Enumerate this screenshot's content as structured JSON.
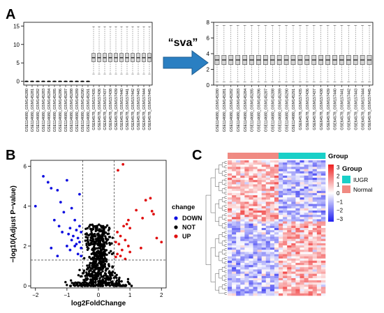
{
  "panels": {
    "a": "A",
    "b": "B",
    "c": "C"
  },
  "arrow_label": "“sva”",
  "chart_data": [
    {
      "type": "box",
      "panel": "A-left",
      "ylim": [
        -1,
        16
      ],
      "yticks": [
        "0",
        "5",
        "10",
        "15"
      ],
      "categories": [
        "GSE114680_GSM145280",
        "GSE114680_GSM145281",
        "GSE114680_GSM145282",
        "GSE114680_GSM145283",
        "GSE114680_GSM145284",
        "GSE114680_GSM145285",
        "GSE114680_GSM145286",
        "GSE114680_GSM145287",
        "GSE114680_GSM145288",
        "GSE114680_GSM145289",
        "GSE114680_GSM145290",
        "GSE114680_GSM145291",
        "GSE64578_GSM157435",
        "GSE64578_GSM157436",
        "GSE64578_GSM157437",
        "GSE64578_GSM157438",
        "GSE64578_GSM157439",
        "GSE64578_GSM157440",
        "GSE64578_GSM157441",
        "GSE64578_GSM157442",
        "GSE64578_GSM157443",
        "GSE64578_GSM157444",
        "GSE64578_GSM157445"
      ],
      "group1": {
        "q1": -0.05,
        "median": 0.0,
        "q3": 0.05,
        "whisker_low": -0.15,
        "whisker_high": 0.15,
        "count": 12
      },
      "group2": {
        "q1": 5.3,
        "median": 6.4,
        "q3": 7.6,
        "whisker_low": 2.0,
        "whisker_high": 14.8,
        "count": 11
      }
    },
    {
      "type": "box",
      "panel": "A-right",
      "ylim": [
        0,
        8
      ],
      "yticks": [
        "0",
        "2",
        "4",
        "6",
        "8"
      ],
      "categories": [
        "GSE114680_GSM145280",
        "GSE114680_GSM145281",
        "GSE114680_GSM145282",
        "GSE114680_GSM145283",
        "GSE114680_GSM145284",
        "GSE114680_GSM145285",
        "GSE114680_GSM145286",
        "GSE114680_GSM145287",
        "GSE114680_GSM145288",
        "GSE114680_GSM145289",
        "GSE114680_GSM145290",
        "GSE114680_GSM145291",
        "GSE64578_GSM157435",
        "GSE64578_GSM157436",
        "GSE64578_GSM157437",
        "GSE64578_GSM157438",
        "GSE64578_GSM157439",
        "GSE64578_GSM157440",
        "GSE64578_GSM157441",
        "GSE64578_GSM157442",
        "GSE64578_GSM157443",
        "GSE64578_GSM157444",
        "GSE64578_GSM157445"
      ],
      "box": {
        "q1": 2.6,
        "median": 3.2,
        "q3": 3.8,
        "whisker_low": 0.4,
        "whisker_high": 7.6
      }
    },
    {
      "type": "scatter",
      "panel": "B",
      "xlabel": "log2FoldChange",
      "ylabel": "−log10(Adjust P−value)",
      "xlim": [
        -2.15,
        2.15
      ],
      "ylim": [
        -0.1,
        6.3
      ],
      "xticks": [
        "−2",
        "−1",
        "0",
        "1",
        "2"
      ],
      "yticks": [
        "0",
        "2",
        "4",
        "6"
      ],
      "vlines": [
        -0.5,
        0.5
      ],
      "hline": 1.3,
      "legend_title": "change",
      "legend": [
        {
          "name": "DOWN",
          "color": "#1010e0"
        },
        {
          "name": "NOT",
          "color": "#000000"
        },
        {
          "name": "UP",
          "color": "#e01010"
        }
      ],
      "down_points": [
        [
          -2.0,
          4.0
        ],
        [
          -1.75,
          5.5
        ],
        [
          -1.6,
          5.2
        ],
        [
          -1.5,
          4.9
        ],
        [
          -1.3,
          4.8
        ],
        [
          -1.2,
          4.2
        ],
        [
          -1.0,
          5.3
        ],
        [
          -1.1,
          3.7
        ],
        [
          -1.4,
          3.3
        ],
        [
          -1.25,
          3.0
        ],
        [
          -0.85,
          3.9
        ],
        [
          -0.75,
          3.3
        ],
        [
          -0.9,
          2.9
        ],
        [
          -1.15,
          2.7
        ],
        [
          -0.95,
          2.6
        ],
        [
          -0.7,
          2.8
        ],
        [
          -0.6,
          3.0
        ],
        [
          -0.8,
          2.5
        ],
        [
          -0.65,
          2.4
        ],
        [
          -0.55,
          2.7
        ],
        [
          -0.7,
          2.1
        ],
        [
          -0.6,
          2.2
        ],
        [
          -0.85,
          2.3
        ],
        [
          -0.75,
          2.0
        ],
        [
          -0.55,
          1.9
        ],
        [
          -1.0,
          2.0
        ],
        [
          -0.9,
          1.8
        ],
        [
          -0.65,
          1.6
        ],
        [
          -0.55,
          1.5
        ],
        [
          -1.5,
          1.9
        ],
        [
          -1.3,
          1.5
        ],
        [
          -0.6,
          4.6
        ]
      ],
      "up_points": [
        [
          0.78,
          6.1
        ],
        [
          0.62,
          5.8
        ],
        [
          1.65,
          4.4
        ],
        [
          1.5,
          4.3
        ],
        [
          1.7,
          3.75
        ],
        [
          1.2,
          3.8
        ],
        [
          0.95,
          3.3
        ],
        [
          0.9,
          3.1
        ],
        [
          0.8,
          3.0
        ],
        [
          1.0,
          2.9
        ],
        [
          0.6,
          2.7
        ],
        [
          0.7,
          2.5
        ],
        [
          0.55,
          2.2
        ],
        [
          0.65,
          2.1
        ],
        [
          0.85,
          2.3
        ],
        [
          0.95,
          2.0
        ],
        [
          0.75,
          1.8
        ],
        [
          0.6,
          1.6
        ],
        [
          1.0,
          1.7
        ],
        [
          1.35,
          1.9
        ],
        [
          0.55,
          1.45
        ],
        [
          0.7,
          1.5
        ],
        [
          2.0,
          2.2
        ],
        [
          1.85,
          2.4
        ],
        [
          0.85,
          1.35
        ],
        [
          1.4,
          3.4
        ],
        [
          1.75,
          3.6
        ]
      ],
      "not_points_note": "dense black cloud centered at x=0 spreading up to |x|≈0.5 above the threshold line and to |x|≈1.3 below it"
    },
    {
      "type": "heatmap",
      "panel": "C",
      "annotation_label": "Group",
      "legend_title": "Group",
      "legend": [
        {
          "name": "IUGR",
          "color": "#19d0c8"
        },
        {
          "name": "Normal",
          "color": "#f08a82"
        }
      ],
      "colorbar_ticks": [
        "3",
        "2",
        "1",
        "0",
        "−1",
        "−2",
        "−3"
      ],
      "colorbar_range": [
        -3,
        3
      ],
      "colors": {
        "low": "#1f1ff0",
        "mid": "#ffffff",
        "high": "#ee1f1f"
      },
      "n_rows": 62,
      "n_cols": 23,
      "n_normal": 12,
      "n_iugr": 11
    }
  ]
}
